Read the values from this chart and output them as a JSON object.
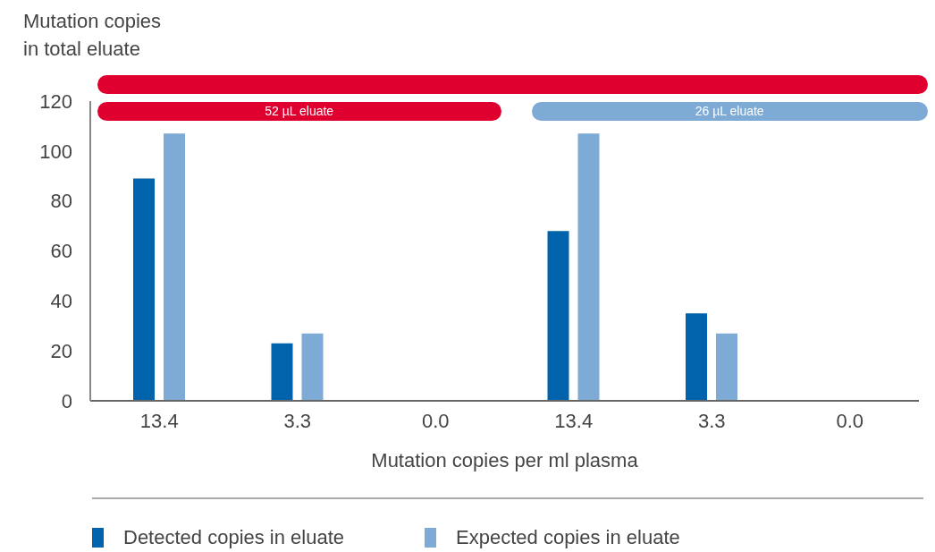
{
  "chart_data": {
    "type": "bar",
    "ylabel": "Mutation copies in total eluate",
    "xlabel": "Mutation copies per ml plasma",
    "categories": [
      "13.4",
      "3.3",
      "0.0",
      "13.4",
      "3.3",
      "0.0"
    ],
    "series": [
      {
        "name": "Detected copies in eluate",
        "color": "#0063ab",
        "values": [
          89,
          23,
          0,
          68,
          35,
          0
        ]
      },
      {
        "name": "Expected copies in eluate",
        "color": "#7eaad6",
        "values": [
          107,
          27,
          0,
          107,
          27,
          0
        ]
      }
    ],
    "ylim": [
      0,
      120
    ],
    "yticks": [
      0,
      20,
      40,
      60,
      80,
      100,
      120
    ],
    "legend": "bottom",
    "annotations": [
      "52 µL eluate",
      "26 µL eluate"
    ]
  }
}
